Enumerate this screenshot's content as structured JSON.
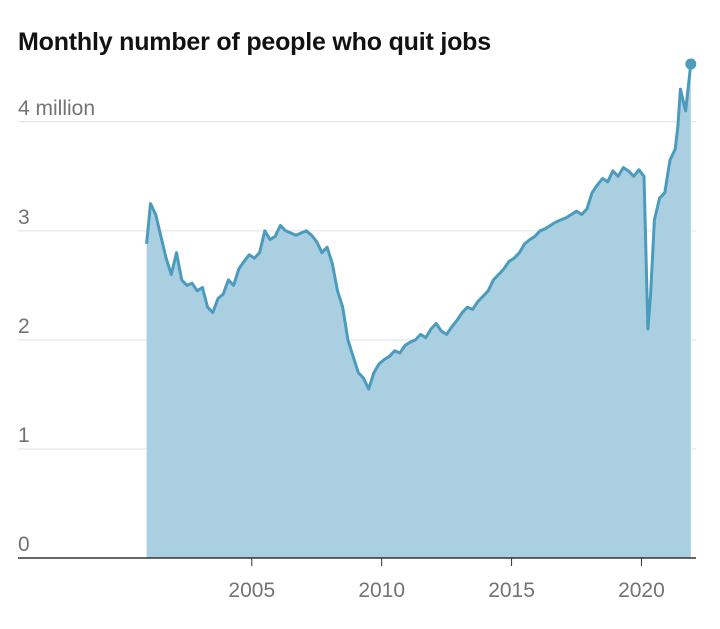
{
  "chart_data": {
    "type": "area",
    "title": "Monthly number of people who quit jobs",
    "xlabel": "",
    "ylabel": "",
    "y_unit_label": "million",
    "xlim": [
      1996.0,
      2022.1
    ],
    "ylim": [
      0,
      4.75
    ],
    "y_ticks": [
      {
        "value": 0,
        "label": "0"
      },
      {
        "value": 1,
        "label": "1"
      },
      {
        "value": 2,
        "label": "2"
      },
      {
        "value": 3,
        "label": "3"
      },
      {
        "value": 4,
        "label": "4 million"
      }
    ],
    "x_ticks": [
      {
        "value": 2005,
        "label": "2005"
      },
      {
        "value": 2010,
        "label": "2010"
      },
      {
        "value": 2015,
        "label": "2015"
      },
      {
        "value": 2020,
        "label": "2020"
      }
    ],
    "grid": true,
    "colors": {
      "line": "#4a9bbd",
      "fill": "#aacfe0",
      "grid": "#e2e2e2",
      "axis": "#333333",
      "tick_text": "#737373"
    },
    "series": [
      {
        "x": [
          2000.95,
          2001.1,
          2001.3,
          2001.5,
          2001.7,
          2001.9,
          2002.1,
          2002.3,
          2002.5,
          2002.7,
          2002.9,
          2003.1,
          2003.3,
          2003.5,
          2003.7,
          2003.9,
          2004.1,
          2004.3,
          2004.5,
          2004.7,
          2004.9,
          2005.1,
          2005.3,
          2005.5,
          2005.7,
          2005.9,
          2006.1,
          2006.3,
          2006.5,
          2006.7,
          2006.9,
          2007.1,
          2007.3,
          2007.5,
          2007.7,
          2007.9,
          2008.1,
          2008.3,
          2008.5,
          2008.7,
          2008.9,
          2009.1,
          2009.3,
          2009.5,
          2009.7,
          2009.9,
          2010.1,
          2010.3,
          2010.5,
          2010.7,
          2010.9,
          2011.1,
          2011.3,
          2011.5,
          2011.7,
          2011.9,
          2012.1,
          2012.3,
          2012.5,
          2012.7,
          2012.9,
          2013.1,
          2013.3,
          2013.5,
          2013.7,
          2013.9,
          2014.1,
          2014.3,
          2014.5,
          2014.7,
          2014.9,
          2015.1,
          2015.3,
          2015.5,
          2015.7,
          2015.9,
          2016.1,
          2016.3,
          2016.5,
          2016.7,
          2016.9,
          2017.1,
          2017.3,
          2017.5,
          2017.7,
          2017.9,
          2018.1,
          2018.3,
          2018.5,
          2018.7,
          2018.9,
          2019.1,
          2019.3,
          2019.5,
          2019.7,
          2019.9,
          2020.1,
          2020.25,
          2020.35,
          2020.5,
          2020.7,
          2020.9,
          2021.1,
          2021.3,
          2021.4,
          2021.5,
          2021.7,
          2021.9
        ],
        "values": [
          2.88,
          3.25,
          3.15,
          2.95,
          2.75,
          2.6,
          2.8,
          2.55,
          2.5,
          2.52,
          2.45,
          2.48,
          2.3,
          2.25,
          2.38,
          2.42,
          2.55,
          2.5,
          2.65,
          2.72,
          2.78,
          2.75,
          2.8,
          3.0,
          2.92,
          2.95,
          3.05,
          3.0,
          2.98,
          2.96,
          2.98,
          3.0,
          2.96,
          2.9,
          2.8,
          2.85,
          2.7,
          2.45,
          2.3,
          2.0,
          1.85,
          1.7,
          1.65,
          1.55,
          1.7,
          1.78,
          1.82,
          1.85,
          1.9,
          1.88,
          1.95,
          1.98,
          2.0,
          2.05,
          2.02,
          2.1,
          2.15,
          2.08,
          2.05,
          2.12,
          2.18,
          2.25,
          2.3,
          2.28,
          2.35,
          2.4,
          2.45,
          2.55,
          2.6,
          2.65,
          2.72,
          2.75,
          2.8,
          2.88,
          2.92,
          2.95,
          3.0,
          3.02,
          3.05,
          3.08,
          3.1,
          3.12,
          3.15,
          3.18,
          3.15,
          3.2,
          3.35,
          3.42,
          3.48,
          3.45,
          3.55,
          3.5,
          3.58,
          3.55,
          3.5,
          3.56,
          3.5,
          2.1,
          2.4,
          3.1,
          3.3,
          3.35,
          3.65,
          3.75,
          3.95,
          4.3,
          4.1,
          4.53
        ]
      }
    ]
  }
}
